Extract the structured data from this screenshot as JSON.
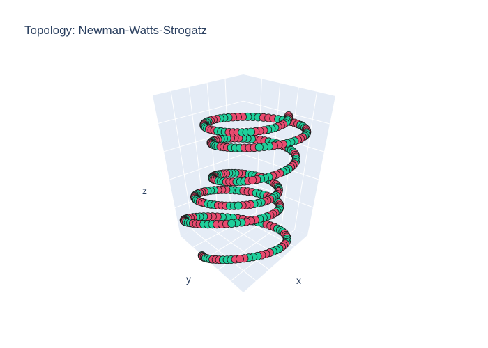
{
  "chart_data": {
    "type": "scatter",
    "subtype": "3d-scatter",
    "title": "Topology: Newman-Watts-Strogatz",
    "xlabel": "x",
    "ylabel": "y",
    "zlabel": "z",
    "grid": true,
    "legend": "none",
    "colors": {
      "group_a": "#e84a6f",
      "group_b": "#1fcf9b",
      "outline": "#1a1a1a",
      "pane": "#e5ecf6",
      "gridline": "#ffffff"
    },
    "marker_shape": "circle",
    "series_note": "points form a helical ring alternating between two colors"
  }
}
